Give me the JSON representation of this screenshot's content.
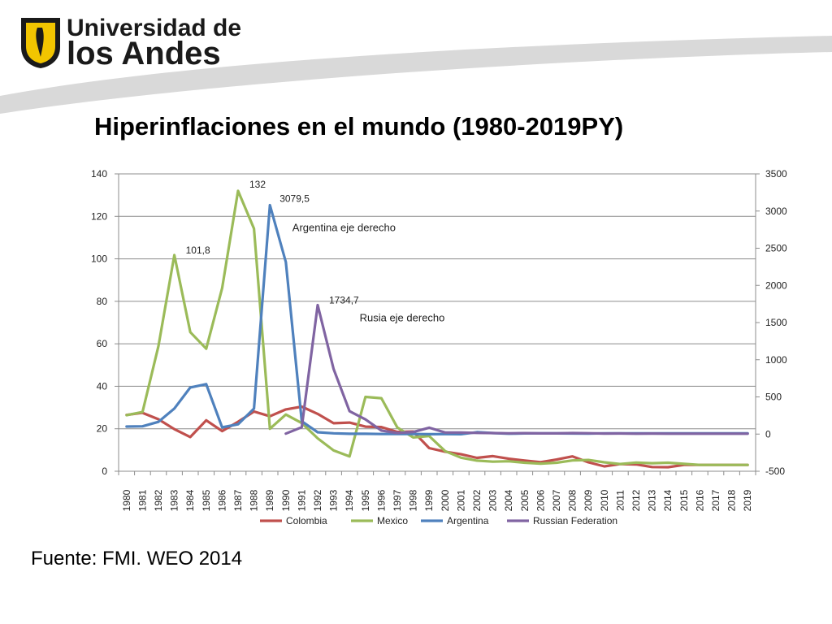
{
  "logo": {
    "line1": "Universidad de",
    "line2": "los Andes"
  },
  "title": "Hiperinflaciones en el mundo (1980-2019PY)",
  "source": "Fuente: FMI. WEO 2014",
  "colors": {
    "swoosh": "#d9d9d9",
    "logo_yellow": "#f2c500",
    "logo_dark": "#1a1a1a"
  },
  "chart_data": {
    "type": "line",
    "x": [
      1980,
      1981,
      1982,
      1983,
      1984,
      1985,
      1986,
      1987,
      1988,
      1989,
      1990,
      1991,
      1992,
      1993,
      1994,
      1995,
      1996,
      1997,
      1998,
      1999,
      2000,
      2001,
      2002,
      2003,
      2004,
      2005,
      2006,
      2007,
      2008,
      2009,
      2010,
      2011,
      2012,
      2013,
      2014,
      2015,
      2016,
      2017,
      2018,
      2019
    ],
    "left_axis": {
      "ylim": [
        0,
        140
      ],
      "ticks": [
        0,
        20,
        40,
        60,
        80,
        100,
        120,
        140
      ]
    },
    "right_axis": {
      "ylim": [
        -500,
        3500
      ],
      "ticks": [
        -500,
        0,
        500,
        1000,
        1500,
        2000,
        2500,
        3000,
        3500
      ]
    },
    "series": [
      {
        "name": "Colombia",
        "axis": "left",
        "color": "#c0504d",
        "values": [
          26.5,
          27.5,
          24.5,
          19.8,
          16.1,
          24.0,
          18.9,
          23.3,
          28.1,
          25.9,
          29.1,
          30.4,
          27.0,
          22.6,
          22.9,
          21.0,
          20.8,
          18.5,
          18.7,
          10.9,
          9.2,
          8.0,
          6.3,
          7.1,
          5.9,
          5.0,
          4.3,
          5.5,
          7.0,
          4.2,
          2.3,
          3.4,
          3.2,
          2.0,
          1.9,
          3.0,
          3.0,
          3.0,
          3.0,
          3.0
        ]
      },
      {
        "name": "Mexico",
        "axis": "left",
        "color": "#9bbb59",
        "values": [
          26.4,
          27.9,
          58.9,
          101.8,
          65.5,
          57.7,
          86.2,
          132.0,
          114.2,
          20.0,
          26.7,
          22.7,
          15.5,
          9.8,
          7.0,
          35.0,
          34.4,
          20.6,
          15.9,
          16.6,
          9.5,
          6.4,
          5.0,
          4.5,
          4.7,
          4.0,
          3.6,
          4.0,
          5.1,
          5.3,
          4.2,
          3.4,
          4.1,
          3.8,
          4.0,
          3.5,
          3.0,
          3.0,
          3.0,
          3.0
        ]
      },
      {
        "name": "Argentina",
        "axis": "right",
        "color": "#4f81bd",
        "values": [
          100.8,
          104.5,
          164.8,
          343.8,
          626.7,
          672.1,
          90.1,
          131.3,
          343.0,
          3079.5,
          2314.0,
          171.7,
          24.9,
          10.6,
          4.2,
          3.4,
          0.2,
          0.5,
          0.9,
          -1.2,
          -0.9,
          -1.1,
          25.9,
          13.4,
          4.4,
          9.6,
          10.9,
          8.8,
          8.6,
          6.3,
          10.5,
          9.8,
          10.0,
          10.6,
          10.0,
          10.0,
          10.0,
          10.0,
          10.0,
          10.0
        ]
      },
      {
        "name": "Russian Federation",
        "axis": "right",
        "color": "#8064a2",
        "values": [
          null,
          null,
          null,
          null,
          null,
          null,
          null,
          null,
          null,
          null,
          5.6,
          92.7,
          1734.7,
          874.6,
          307.6,
          197.5,
          47.7,
          14.8,
          27.7,
          85.7,
          20.8,
          21.5,
          15.8,
          13.7,
          10.9,
          12.7,
          9.7,
          9.0,
          14.1,
          11.7,
          6.9,
          8.4,
          5.1,
          6.8,
          5.0,
          5.0,
          5.0,
          5.0,
          5.0,
          5.0
        ]
      }
    ],
    "annotations": [
      {
        "text": "101,8",
        "x": 1983,
        "axis": "left",
        "value": 101.8
      },
      {
        "text": "132",
        "x": 1987,
        "axis": "left",
        "value": 132
      },
      {
        "text": "3079,5",
        "x": 1989,
        "axis": "right",
        "value": 3079.5
      },
      {
        "text": "Argentina eje derecho",
        "x": 1990,
        "axis": "left",
        "value": 110
      },
      {
        "text": "1734,7",
        "x": 1992,
        "axis": "right",
        "value": 1734.7
      },
      {
        "text": "Rusia eje derecho",
        "x": 1993,
        "axis": "left",
        "value": 66
      }
    ],
    "grid": true,
    "legend_position": "bottom"
  }
}
